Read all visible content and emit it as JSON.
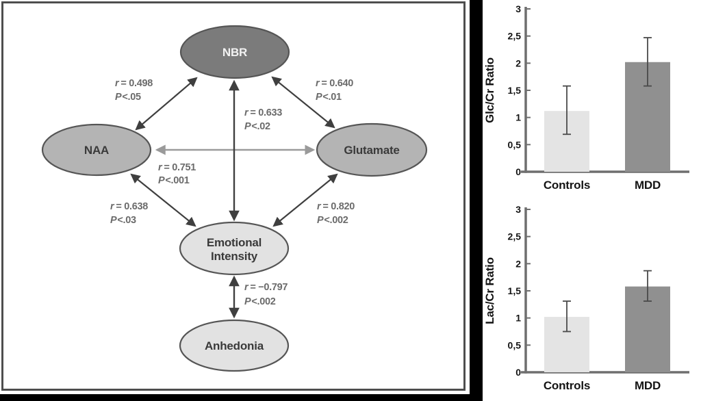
{
  "diagram": {
    "nodes": [
      {
        "id": "nbr",
        "label": "NBR",
        "fill": "#7b7b7b"
      },
      {
        "id": "naa",
        "label": "NAA",
        "fill": "#b4b4b4"
      },
      {
        "id": "glutamate",
        "label": "Glutamate",
        "fill": "#b4b4b4"
      },
      {
        "id": "emotional-intensity",
        "label_line1": "Emotional",
        "label_line2": "Intensity",
        "fill": "#e2e2e2"
      },
      {
        "id": "anhedonia",
        "label": "Anhedonia",
        "fill": "#e2e2e2"
      }
    ],
    "edges": [
      {
        "from": "NAA",
        "to": "NBR",
        "r_sym": "r",
        "r_rest": "= 0.498",
        "p_sym": "P",
        "p_rest": "<.05"
      },
      {
        "from": "NBR",
        "to": "Glutamate",
        "r_sym": "r",
        "r_rest": "= 0.640",
        "p_sym": "P",
        "p_rest": "<.01"
      },
      {
        "from": "NBR",
        "to": "Emotional Intensity",
        "r_sym": "r",
        "r_rest": "= 0.633",
        "p_sym": "P",
        "p_rest": "<.02"
      },
      {
        "from": "NAA",
        "to": "Glutamate",
        "r_sym": "r",
        "r_rest": "= 0.751",
        "p_sym": "P",
        "p_rest": "<.001"
      },
      {
        "from": "NAA",
        "to": "Emotional Intensity",
        "r_sym": "r",
        "r_rest": "= 0.638",
        "p_sym": "P",
        "p_rest": "<.03"
      },
      {
        "from": "Glutamate",
        "to": "Emotional Intensity",
        "r_sym": "r",
        "r_rest": "= 0.820",
        "p_sym": "P",
        "p_rest": "<.002"
      },
      {
        "from": "Emotional Intensity",
        "to": "Anhedonia",
        "r_sym": "r",
        "r_rest": "= −0.797",
        "p_sym": "P",
        "p_rest": "<.002"
      }
    ],
    "colors": {
      "arrow_dark": "#3f3f3f",
      "arrow_gray": "#9a9a9a",
      "node_border": "#555555",
      "frame_border": "#4e4e4e"
    }
  },
  "chart_data": [
    {
      "type": "bar",
      "title": "",
      "ylabel": "Glc/Cr Ratio",
      "xlabel": "",
      "categories": [
        "Controls",
        "MDD"
      ],
      "values": [
        1.12,
        2.02
      ],
      "error_low": [
        0.69,
        1.58
      ],
      "error_high": [
        1.58,
        2.47
      ],
      "ylim": [
        0,
        3
      ],
      "ytick_labels": [
        "0",
        "0,5",
        "1",
        "1,5",
        "2",
        "2,5",
        "3"
      ],
      "ytick_values": [
        0,
        0.5,
        1,
        1.5,
        2,
        2.5,
        3
      ],
      "bar_colors": [
        "#e4e4e4",
        "#909090"
      ],
      "axis_color": "#6f6f6f",
      "error_color": "#4a4a4a",
      "grid": false,
      "legend": "none"
    },
    {
      "type": "bar",
      "title": "",
      "ylabel": "Lac/Cr Ratio",
      "xlabel": "",
      "categories": [
        "Controls",
        "MDD"
      ],
      "values": [
        1.02,
        1.58
      ],
      "error_low": [
        0.75,
        1.31
      ],
      "error_high": [
        1.31,
        1.87
      ],
      "ylim": [
        0,
        3
      ],
      "ytick_labels": [
        "0",
        "0,5",
        "1",
        "1,5",
        "2",
        "2,5",
        "3"
      ],
      "ytick_values": [
        0,
        0.5,
        1,
        1.5,
        2,
        2.5,
        3
      ],
      "bar_colors": [
        "#e4e4e4",
        "#909090"
      ],
      "axis_color": "#6f6f6f",
      "error_color": "#4a4a4a",
      "grid": false,
      "legend": "none"
    }
  ]
}
